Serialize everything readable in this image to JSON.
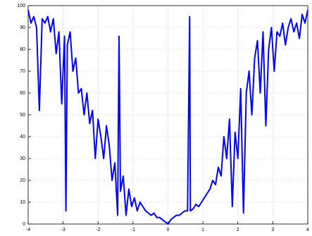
{
  "chart_data": {
    "type": "line",
    "color": "#0000ff",
    "grid": true,
    "xlim": [
      -4,
      4
    ],
    "xticks": [
      -4,
      -3,
      -2,
      -1,
      0,
      1,
      2,
      3,
      4
    ],
    "ylim": [
      0,
      100
    ],
    "yticks": [
      0,
      10,
      20,
      30,
      40,
      50,
      60,
      70,
      80,
      90,
      100
    ],
    "x": [
      -4.0,
      -3.92,
      -3.84,
      -3.76,
      -3.68,
      -3.6,
      -3.52,
      -3.44,
      -3.36,
      -3.28,
      -3.2,
      -3.12,
      -3.04,
      -2.96,
      -2.92,
      -2.88,
      -2.8,
      -2.72,
      -2.64,
      -2.56,
      -2.48,
      -2.4,
      -2.32,
      -2.24,
      -2.16,
      -2.08,
      -2.0,
      -1.92,
      -1.84,
      -1.76,
      -1.68,
      -1.6,
      -1.52,
      -1.44,
      -1.4,
      -1.36,
      -1.28,
      -1.2,
      -1.12,
      -1.04,
      -0.96,
      -0.88,
      -0.8,
      -0.72,
      -0.64,
      -0.56,
      -0.48,
      -0.4,
      -0.32,
      -0.24,
      -0.16,
      -0.08,
      0,
      0.08,
      0.16,
      0.24,
      0.32,
      0.4,
      0.48,
      0.56,
      0.62,
      0.64,
      0.72,
      0.8,
      0.88,
      0.96,
      1.04,
      1.12,
      1.2,
      1.28,
      1.36,
      1.44,
      1.52,
      1.6,
      1.68,
      1.76,
      1.84,
      1.92,
      2.0,
      2.08,
      2.16,
      2.24,
      2.32,
      2.4,
      2.48,
      2.56,
      2.64,
      2.72,
      2.8,
      2.88,
      2.96,
      3.04,
      3.12,
      3.2,
      3.28,
      3.36,
      3.44,
      3.52,
      3.6,
      3.68,
      3.76,
      3.84,
      3.92,
      4.0
    ],
    "values": [
      98,
      92,
      95,
      90,
      52,
      94,
      92,
      95,
      88,
      94,
      78,
      88,
      55,
      86,
      6,
      82,
      88,
      70,
      76,
      60,
      62,
      50,
      60,
      46,
      52,
      30,
      48,
      40,
      30,
      45,
      36,
      20,
      28,
      4,
      86,
      15,
      22,
      4,
      16,
      8,
      12,
      6,
      10,
      8,
      6,
      5,
      4,
      5,
      3,
      3,
      2,
      1,
      0,
      2,
      3,
      4,
      4,
      5,
      6,
      6,
      95,
      6,
      7,
      9,
      8,
      10,
      12,
      14,
      16,
      20,
      18,
      26,
      22,
      40,
      30,
      48,
      8,
      42,
      30,
      62,
      5,
      60,
      70,
      50,
      76,
      84,
      60,
      88,
      45,
      80,
      90,
      70,
      88,
      86,
      92,
      82,
      90,
      94,
      88,
      92,
      85,
      96,
      92,
      98
    ]
  }
}
